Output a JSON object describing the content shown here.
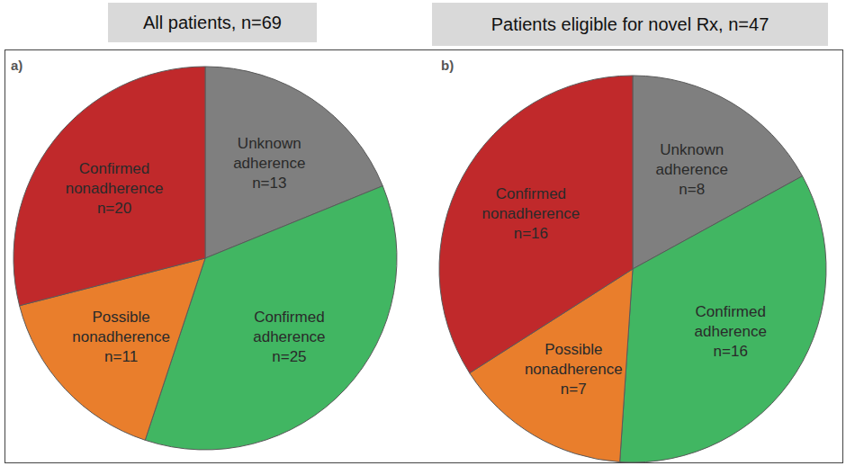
{
  "chart_data": [
    {
      "type": "pie",
      "title": "All patients, n=69",
      "annotations": [
        "a)"
      ],
      "categories": [
        "Unknown adherence",
        "Confirmed adherence",
        "Possible nonadherence",
        "Confirmed nonadherence"
      ],
      "values": [
        13,
        25,
        11,
        20
      ],
      "value_labels": [
        "n=13",
        "n=25",
        "n=11",
        "n=20"
      ],
      "data_labels": true,
      "colors": [
        "#7f7f7f",
        "#41b662",
        "#e97e2c",
        "#c0292b"
      ]
    },
    {
      "type": "pie",
      "title": "Patients eligible for novel Rx, n=47",
      "annotations": [
        "b)"
      ],
      "categories": [
        "Unknown adherence",
        "Confirmed adherence",
        "Possible nonadherence",
        "Confirmed nonadherence"
      ],
      "values": [
        8,
        16,
        7,
        16
      ],
      "value_labels": [
        "n=8",
        "n=16",
        "n=7",
        "n=16"
      ],
      "data_labels": true,
      "colors": [
        "#7f7f7f",
        "#41b662",
        "#e97e2c",
        "#c0292b"
      ]
    }
  ]
}
